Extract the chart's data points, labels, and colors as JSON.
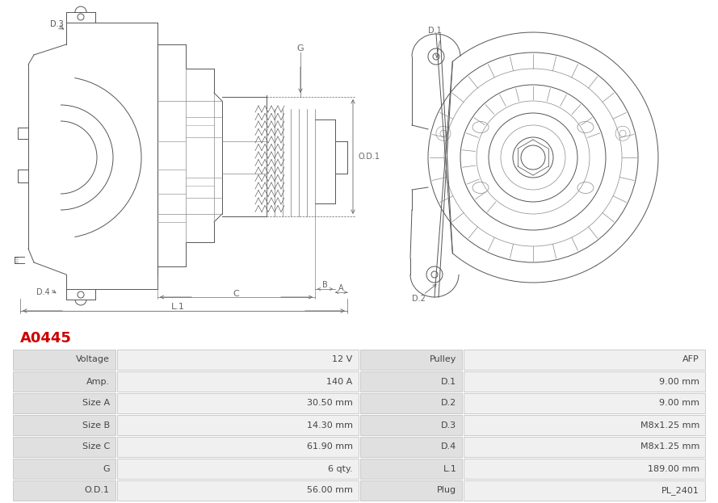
{
  "title": "A0445",
  "title_color": "#cc0000",
  "bg_color": "#ffffff",
  "table_data": [
    [
      "Voltage",
      "12 V",
      "Pulley",
      "AFP"
    ],
    [
      "Amp.",
      "140 A",
      "D.1",
      "9.00 mm"
    ],
    [
      "Size A",
      "30.50 mm",
      "D.2",
      "9.00 mm"
    ],
    [
      "Size B",
      "14.30 mm",
      "D.3",
      "M8x1.25 mm"
    ],
    [
      "Size C",
      "61.90 mm",
      "D.4",
      "M8x1.25 mm"
    ],
    [
      "G",
      "6 qty.",
      "L.1",
      "189.00 mm"
    ],
    [
      "O.D.1",
      "56.00 mm",
      "Plug",
      "PL_2401"
    ]
  ],
  "label_bg": "#e0e0e0",
  "value_bg": "#f0f0f0",
  "border_color": "#bbbbbb",
  "text_color": "#444444",
  "draw_color": "#555555",
  "dim_color": "#666666",
  "lw": 0.7,
  "font_size": 8
}
